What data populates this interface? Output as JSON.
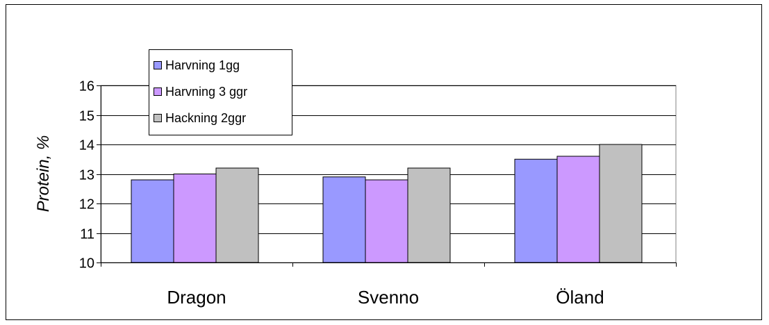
{
  "chart_data": {
    "type": "bar",
    "categories": [
      "Dragon",
      "Svenno",
      "Öland"
    ],
    "series": [
      {
        "name": "Harvning 1gg",
        "values": [
          12.8,
          12.9,
          13.5
        ],
        "color": "#9999ff"
      },
      {
        "name": "Harvning 3 ggr",
        "values": [
          13.0,
          12.8,
          13.6
        ],
        "color": "#cc99ff"
      },
      {
        "name": "Hackning 2ggr",
        "values": [
          13.2,
          13.2,
          14.0
        ],
        "color": "#c0c0c0"
      }
    ],
    "ylabel": "Protein, %",
    "ylim": [
      10,
      16
    ],
    "yticks": [
      10,
      11,
      12,
      13,
      14,
      15,
      16
    ],
    "grid": true,
    "legend": "top-left"
  }
}
